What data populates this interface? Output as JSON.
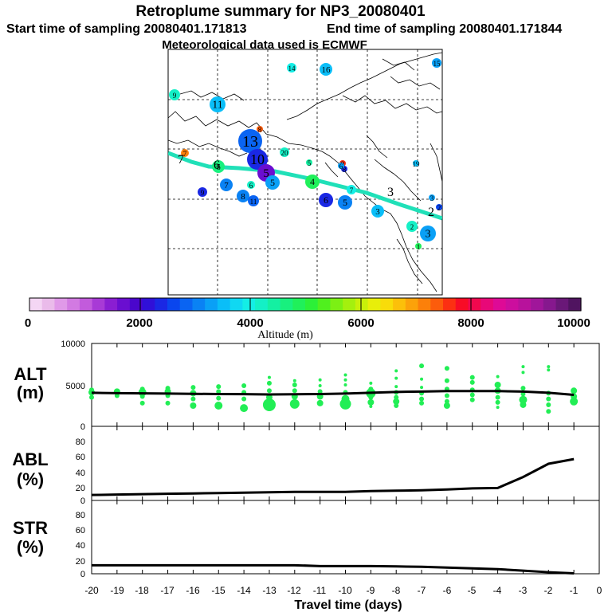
{
  "header": {
    "title": "Retroplume summary for NP3_20080401",
    "start_label": "Start time of sampling 20080401.171813",
    "end_label": "End time of sampling 20080401.171844",
    "met_label": "Meteorological data used is ECMWF"
  },
  "colors": {
    "plume_line": "#20e0b8",
    "series_dot": "#22ee55",
    "line": "#000000",
    "colorbar": [
      "#f4d6f4",
      "#eabbea",
      "#e099e8",
      "#d27ae2",
      "#c25bdc",
      "#a83ad6",
      "#8a1ed2",
      "#6a0ed0",
      "#4a06cc",
      "#3010d8",
      "#1a28e4",
      "#0a46ee",
      "#0a64f2",
      "#0a82f4",
      "#0aa0f6",
      "#0abef8",
      "#10d8f2",
      "#14eee6",
      "#14f0c6",
      "#14f0a2",
      "#18f07e",
      "#20f05a",
      "#2cf038",
      "#50f01e",
      "#7cf014",
      "#a4f00e",
      "#c8f00a",
      "#e8ee0a",
      "#f8dc0a",
      "#fcc00a",
      "#fca20a",
      "#fc800a",
      "#fc5c0c",
      "#fc3012",
      "#f80c26",
      "#f0084e",
      "#e80878",
      "#de0a96",
      "#cc0e9e",
      "#b8129c",
      "#a0169a",
      "#86188e",
      "#6a1878",
      "#501460"
    ]
  },
  "map": {
    "points": [
      {
        "label": "14",
        "size": 6,
        "alt": 3950
      },
      {
        "label": "16",
        "size": 8,
        "alt": 3600
      },
      {
        "label": "15",
        "size": 6,
        "alt": 3200
      },
      {
        "label": "9",
        "size": 7,
        "alt": 4300
      },
      {
        "label": "11",
        "size": 10,
        "alt": 3450
      },
      {
        "label": "13",
        "size": 15,
        "alt": 2900
      },
      {
        "label": "8",
        "size": 4,
        "alt": 7400
      },
      {
        "label": "20",
        "size": 6,
        "alt": 4150
      },
      {
        "label": "7",
        "size": 5,
        "alt": 7100
      },
      {
        "label": "10",
        "size": 13,
        "alt": 2450
      },
      {
        "label": "5",
        "size": 11,
        "alt": 1700
      },
      {
        "label": "4",
        "size": 9,
        "alt": 4800
      },
      {
        "label": "19",
        "size": 4,
        "alt": 3500
      },
      {
        "label": "5",
        "size": 4,
        "alt": 4500
      },
      {
        "label": "6",
        "size": 8,
        "alt": 4600
      },
      {
        "label": "9",
        "size": 6,
        "alt": 2300
      },
      {
        "label": "7",
        "size": 8,
        "alt": 3050
      },
      {
        "label": "6",
        "size": 5,
        "alt": 4300
      },
      {
        "label": "5",
        "size": 9,
        "alt": 3350
      },
      {
        "label": "8",
        "size": 8,
        "alt": 3100
      },
      {
        "label": "11",
        "size": 7,
        "alt": 2950
      },
      {
        "label": "6",
        "size": 9,
        "alt": 2300
      },
      {
        "label": "5",
        "size": 9,
        "alt": 3150
      },
      {
        "label": "3",
        "size": 8,
        "alt": 3500
      },
      {
        "label": "2",
        "size": 7,
        "alt": 4200
      },
      {
        "label": "3",
        "size": 10,
        "alt": 3200
      },
      {
        "label": "1",
        "size": 4,
        "alt": 4950
      },
      {
        "label": "9",
        "size": 4,
        "alt": 7600
      },
      {
        "label": "3",
        "size": 4,
        "alt": 3300
      },
      {
        "label": "7",
        "size": 6,
        "alt": 3900
      },
      {
        "label": "8",
        "size": 4,
        "alt": 2400
      },
      {
        "label": "6",
        "size": 4,
        "alt": 3300
      },
      {
        "label": "2",
        "size": 4,
        "alt": 2500
      }
    ],
    "track_labels": [
      "7",
      "6",
      "3",
      "2"
    ]
  },
  "colorbar": {
    "tick_labels": [
      "0",
      "2000",
      "4000",
      "6000",
      "8000",
      "10000"
    ],
    "label": "Altitude (m)"
  },
  "chart_data": [
    {
      "type": "scatter",
      "title": "ALT (m)",
      "panel_label": "ALT",
      "unit_label": "(m)",
      "ylim": [
        0,
        10000
      ],
      "yticks": [
        "10000",
        "5000",
        "0"
      ],
      "mean_line": {
        "x": [
          -20,
          -19,
          -18,
          -17,
          -16,
          -15,
          -14,
          -13,
          -12,
          -11,
          -10,
          -9,
          -8,
          -7,
          -6,
          -5,
          -4,
          -3,
          -2,
          -1
        ],
        "y": [
          4050,
          4000,
          3980,
          3950,
          3920,
          3900,
          3880,
          3850,
          3870,
          3900,
          3950,
          4050,
          4150,
          4200,
          4250,
          4250,
          4250,
          4200,
          4050,
          3800
        ]
      },
      "particles": [
        {
          "x": -20,
          "y": 3500,
          "s": 3
        },
        {
          "x": -20,
          "y": 4100,
          "s": 4
        },
        {
          "x": -20,
          "y": 4400,
          "s": 3
        },
        {
          "x": -19,
          "y": 3700,
          "s": 3
        },
        {
          "x": -19,
          "y": 4200,
          "s": 4
        },
        {
          "x": -18,
          "y": 2800,
          "s": 3
        },
        {
          "x": -18,
          "y": 3600,
          "s": 3
        },
        {
          "x": -18,
          "y": 4100,
          "s": 5
        },
        {
          "x": -18,
          "y": 4500,
          "s": 3
        },
        {
          "x": -17,
          "y": 2800,
          "s": 3
        },
        {
          "x": -17,
          "y": 3700,
          "s": 3
        },
        {
          "x": -17,
          "y": 4200,
          "s": 4
        },
        {
          "x": -17,
          "y": 4600,
          "s": 3
        },
        {
          "x": -16,
          "y": 2500,
          "s": 4
        },
        {
          "x": -16,
          "y": 3300,
          "s": 3
        },
        {
          "x": -16,
          "y": 4000,
          "s": 4
        },
        {
          "x": -16,
          "y": 4700,
          "s": 3
        },
        {
          "x": -15,
          "y": 2500,
          "s": 5
        },
        {
          "x": -15,
          "y": 3400,
          "s": 3
        },
        {
          "x": -15,
          "y": 4200,
          "s": 3
        },
        {
          "x": -15,
          "y": 4800,
          "s": 3
        },
        {
          "x": -14,
          "y": 2200,
          "s": 5
        },
        {
          "x": -14,
          "y": 3300,
          "s": 3
        },
        {
          "x": -14,
          "y": 4100,
          "s": 3
        },
        {
          "x": -14,
          "y": 4900,
          "s": 3
        },
        {
          "x": -13,
          "y": 2600,
          "s": 8
        },
        {
          "x": -13,
          "y": 3500,
          "s": 4
        },
        {
          "x": -13,
          "y": 4300,
          "s": 3
        },
        {
          "x": -13,
          "y": 5200,
          "s": 3
        },
        {
          "x": -13,
          "y": 5900,
          "s": 2
        },
        {
          "x": -12,
          "y": 2700,
          "s": 6
        },
        {
          "x": -12,
          "y": 3600,
          "s": 4
        },
        {
          "x": -12,
          "y": 4300,
          "s": 3
        },
        {
          "x": -12,
          "y": 5000,
          "s": 3
        },
        {
          "x": -12,
          "y": 5500,
          "s": 2
        },
        {
          "x": -11,
          "y": 2800,
          "s": 4
        },
        {
          "x": -11,
          "y": 3600,
          "s": 4
        },
        {
          "x": -11,
          "y": 4200,
          "s": 3
        },
        {
          "x": -11,
          "y": 4900,
          "s": 2
        },
        {
          "x": -11,
          "y": 5600,
          "s": 2
        },
        {
          "x": -10,
          "y": 2700,
          "s": 7
        },
        {
          "x": -10,
          "y": 3300,
          "s": 5
        },
        {
          "x": -10,
          "y": 4100,
          "s": 3
        },
        {
          "x": -10,
          "y": 5000,
          "s": 2
        },
        {
          "x": -10,
          "y": 5600,
          "s": 2
        },
        {
          "x": -10,
          "y": 6200,
          "s": 2
        },
        {
          "x": -9,
          "y": 2400,
          "s": 2
        },
        {
          "x": -9,
          "y": 2900,
          "s": 4
        },
        {
          "x": -9,
          "y": 3500,
          "s": 3
        },
        {
          "x": -9,
          "y": 4000,
          "s": 6
        },
        {
          "x": -9,
          "y": 4500,
          "s": 3
        },
        {
          "x": -9,
          "y": 5200,
          "s": 2
        },
        {
          "x": -8,
          "y": 2500,
          "s": 3
        },
        {
          "x": -8,
          "y": 3000,
          "s": 4
        },
        {
          "x": -8,
          "y": 3500,
          "s": 3
        },
        {
          "x": -8,
          "y": 4100,
          "s": 3
        },
        {
          "x": -8,
          "y": 4800,
          "s": 2
        },
        {
          "x": -8,
          "y": 5800,
          "s": 2
        },
        {
          "x": -8,
          "y": 6700,
          "s": 2
        },
        {
          "x": -7,
          "y": 2800,
          "s": 3
        },
        {
          "x": -7,
          "y": 3300,
          "s": 3
        },
        {
          "x": -7,
          "y": 4000,
          "s": 3
        },
        {
          "x": -7,
          "y": 4700,
          "s": 2
        },
        {
          "x": -7,
          "y": 5700,
          "s": 2
        },
        {
          "x": -7,
          "y": 7300,
          "s": 3
        },
        {
          "x": -6,
          "y": 2500,
          "s": 4
        },
        {
          "x": -6,
          "y": 3000,
          "s": 3
        },
        {
          "x": -6,
          "y": 3700,
          "s": 3
        },
        {
          "x": -6,
          "y": 4500,
          "s": 3
        },
        {
          "x": -6,
          "y": 5500,
          "s": 3
        },
        {
          "x": -6,
          "y": 7000,
          "s": 3
        },
        {
          "x": -5,
          "y": 3200,
          "s": 3
        },
        {
          "x": -5,
          "y": 3800,
          "s": 3
        },
        {
          "x": -5,
          "y": 4400,
          "s": 3
        },
        {
          "x": -5,
          "y": 5300,
          "s": 3
        },
        {
          "x": -5,
          "y": 5900,
          "s": 3
        },
        {
          "x": -4,
          "y": 2300,
          "s": 2
        },
        {
          "x": -4,
          "y": 2900,
          "s": 3
        },
        {
          "x": -4,
          "y": 3500,
          "s": 3
        },
        {
          "x": -4,
          "y": 4300,
          "s": 4
        },
        {
          "x": -4,
          "y": 5000,
          "s": 4
        },
        {
          "x": -4,
          "y": 6000,
          "s": 2
        },
        {
          "x": -3,
          "y": 2600,
          "s": 4
        },
        {
          "x": -3,
          "y": 3200,
          "s": 5
        },
        {
          "x": -3,
          "y": 3900,
          "s": 3
        },
        {
          "x": -3,
          "y": 4600,
          "s": 3
        },
        {
          "x": -3,
          "y": 6500,
          "s": 2
        },
        {
          "x": -3,
          "y": 7200,
          "s": 2
        },
        {
          "x": -2,
          "y": 1800,
          "s": 3
        },
        {
          "x": -2,
          "y": 2600,
          "s": 3
        },
        {
          "x": -2,
          "y": 3300,
          "s": 3
        },
        {
          "x": -2,
          "y": 4000,
          "s": 3
        },
        {
          "x": -2,
          "y": 6800,
          "s": 2
        },
        {
          "x": -2,
          "y": 7200,
          "s": 2
        },
        {
          "x": -1,
          "y": 3000,
          "s": 5
        },
        {
          "x": -1,
          "y": 3600,
          "s": 4
        },
        {
          "x": -1,
          "y": 4300,
          "s": 4
        }
      ]
    },
    {
      "type": "line",
      "title": "ABL (%)",
      "panel_label": "ABL",
      "unit_label": "(%)",
      "ylim": [
        0,
        95
      ],
      "yticks": [
        "80",
        "60",
        "40",
        "20",
        "0"
      ],
      "x": [
        -20,
        -19,
        -18,
        -17,
        -16,
        -15,
        -14,
        -13,
        -12,
        -11,
        -10,
        -9,
        -8,
        -7,
        -6,
        -5,
        -4,
        -3,
        -2,
        -1
      ],
      "y": [
        7,
        7.5,
        8,
        8.5,
        9,
        9.5,
        10,
        10.5,
        11,
        11,
        11,
        12,
        12.5,
        13,
        14,
        15.5,
        16,
        30,
        47,
        53
      ]
    },
    {
      "type": "line",
      "title": "STR (%)",
      "panel_label": "STR",
      "unit_label": "(%)",
      "ylim": [
        0,
        95
      ],
      "yticks": [
        "80",
        "60",
        "40",
        "20",
        "0"
      ],
      "x": [
        -20,
        -19,
        -18,
        -17,
        -16,
        -15,
        -14,
        -13,
        -12,
        -11,
        -10,
        -9,
        -8,
        -7,
        -6,
        -5,
        -4,
        -3,
        -2,
        -1
      ],
      "y": [
        11,
        11,
        11,
        11,
        11,
        11,
        11,
        11,
        11,
        10,
        10,
        10,
        9.5,
        9,
        8,
        7,
        6,
        4,
        2,
        0.5
      ]
    }
  ],
  "xaxis": {
    "tick_labels": [
      "-20",
      "-19",
      "-18",
      "-17",
      "-16",
      "-15",
      "-14",
      "-13",
      "-12",
      "-11",
      "-10",
      "-9",
      "-8",
      "-7",
      "-6",
      "-5",
      "-4",
      "-3",
      "-2",
      "-1",
      "0"
    ],
    "label": "Travel time (days)"
  }
}
